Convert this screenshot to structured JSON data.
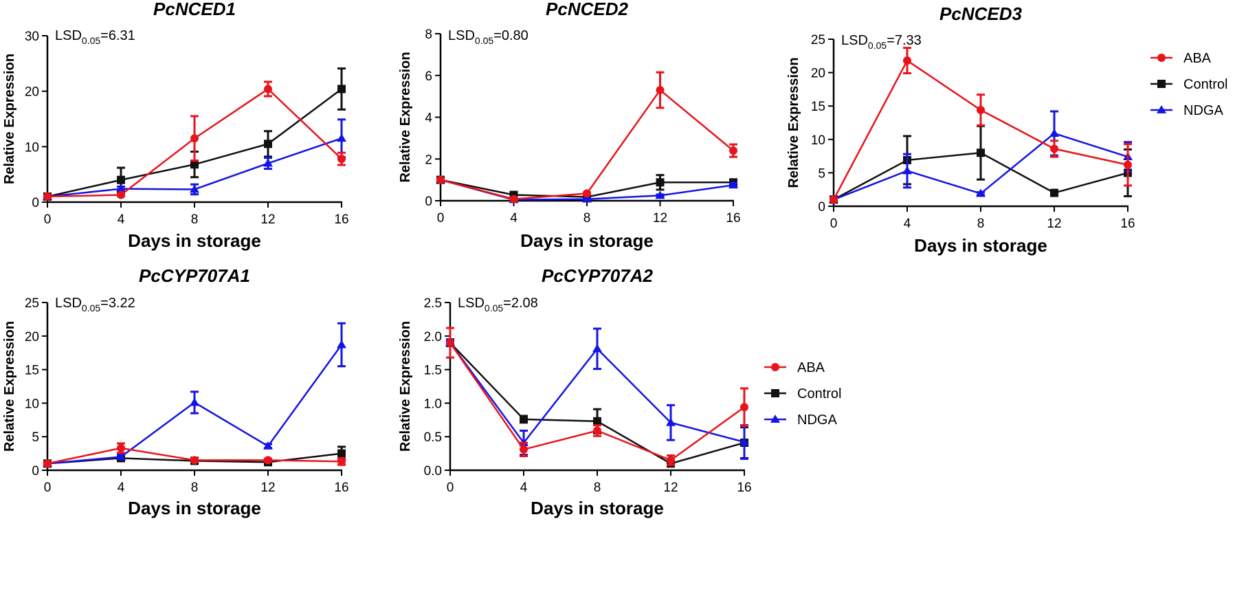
{
  "chart_data": [
    {
      "type": "line",
      "title": "PcNCED1",
      "xlabel": "Days in storage",
      "ylabel": "Relative Expression",
      "lsd": {
        "base": "LSD",
        "sub": "0.05",
        "value": "=6.31"
      },
      "x": [
        0,
        4,
        8,
        12,
        16
      ],
      "xticks": [
        "0",
        "4",
        "8",
        "12",
        "16"
      ],
      "ylim": [
        0,
        30
      ],
      "yticks": [
        0,
        10,
        20,
        30
      ],
      "ytick_labels": [
        "0",
        "10",
        "20",
        "30"
      ],
      "series": [
        {
          "name": "Control",
          "values": [
            1.0,
            4.0,
            6.8,
            10.5,
            20.4
          ],
          "errors": [
            0.2,
            2.2,
            2.3,
            2.3,
            3.7
          ]
        },
        {
          "name": "NDGA",
          "values": [
            1.0,
            2.4,
            2.3,
            7.0,
            11.5
          ],
          "errors": [
            0.2,
            0.4,
            0.9,
            1.0,
            3.4
          ]
        },
        {
          "name": "ABA",
          "values": [
            1.0,
            1.3,
            11.5,
            20.4,
            7.8
          ],
          "errors": [
            0.2,
            0.2,
            4.0,
            1.3,
            1.1
          ]
        }
      ]
    },
    {
      "type": "line",
      "title": "PcNCED2",
      "xlabel": "Days in storage",
      "ylabel": "Relative Expression",
      "lsd": {
        "base": "LSD",
        "sub": "0.05",
        "value": "=0.80"
      },
      "x": [
        0,
        4,
        8,
        12,
        16
      ],
      "xticks": [
        "0",
        "4",
        "8",
        "12",
        "16"
      ],
      "ylim": [
        0,
        8
      ],
      "yticks": [
        0,
        2,
        4,
        6,
        8
      ],
      "ytick_labels": [
        "0",
        "2",
        "4",
        "6",
        "8"
      ],
      "series": [
        {
          "name": "Control",
          "values": [
            1.0,
            0.28,
            0.18,
            0.88,
            0.88
          ],
          "errors": [
            0.05,
            0.05,
            0.05,
            0.35,
            0.1
          ]
        },
        {
          "name": "NDGA",
          "values": [
            1.0,
            0.05,
            0.08,
            0.25,
            0.75
          ],
          "errors": [
            0.05,
            0.03,
            0.03,
            0.05,
            0.1
          ]
        },
        {
          "name": "ABA",
          "values": [
            1.0,
            0.08,
            0.35,
            5.3,
            2.4
          ],
          "errors": [
            0.05,
            0.05,
            0.05,
            0.85,
            0.3
          ]
        }
      ]
    },
    {
      "type": "line",
      "title": "PcNCED3",
      "xlabel": "Days in storage",
      "ylabel": "Relative Expression",
      "lsd": {
        "base": "LSD",
        "sub": "0.05",
        "value": "=7.33"
      },
      "x": [
        0,
        4,
        8,
        12,
        16
      ],
      "xticks": [
        "0",
        "4",
        "8",
        "12",
        "16"
      ],
      "ylim": [
        0,
        25
      ],
      "yticks": [
        0,
        5,
        10,
        15,
        20,
        25
      ],
      "ytick_labels": [
        "0",
        "5",
        "10",
        "15",
        "20",
        "25"
      ],
      "legend": [
        "ABA",
        "Control",
        "NDGA"
      ],
      "series": [
        {
          "name": "Control",
          "values": [
            1.0,
            6.9,
            8.0,
            2.0,
            5.0
          ],
          "errors": [
            0.2,
            3.6,
            4.0,
            0.2,
            3.5
          ]
        },
        {
          "name": "NDGA",
          "values": [
            1.0,
            5.3,
            1.9,
            10.9,
            7.4
          ],
          "errors": [
            0.2,
            2.5,
            0.2,
            3.3,
            2.2
          ]
        },
        {
          "name": "ABA",
          "values": [
            1.0,
            21.8,
            14.4,
            8.6,
            6.2
          ],
          "errors": [
            0.2,
            1.9,
            2.3,
            1.2,
            3.1
          ]
        }
      ]
    },
    {
      "type": "line",
      "title": "PcCYP707A1",
      "xlabel": "Days in storage",
      "ylabel": "Relative Expression",
      "lsd": {
        "base": "LSD",
        "sub": "0.05",
        "value": "=3.22"
      },
      "x": [
        0,
        4,
        8,
        12,
        16
      ],
      "xticks": [
        "0",
        "4",
        "8",
        "12",
        "16"
      ],
      "ylim": [
        0,
        25
      ],
      "yticks": [
        0,
        5,
        10,
        15,
        20,
        25
      ],
      "ytick_labels": [
        "0",
        "5",
        "10",
        "15",
        "20",
        "25"
      ],
      "series": [
        {
          "name": "Control",
          "values": [
            1.0,
            1.8,
            1.4,
            1.2,
            2.5
          ],
          "errors": [
            0.2,
            0.3,
            0.3,
            0.2,
            1.0
          ]
        },
        {
          "name": "NDGA",
          "values": [
            1.0,
            2.0,
            10.1,
            3.6,
            18.7
          ],
          "errors": [
            0.2,
            0.3,
            1.6,
            0.3,
            3.2
          ]
        },
        {
          "name": "ABA",
          "values": [
            1.0,
            3.3,
            1.5,
            1.5,
            1.3
          ],
          "errors": [
            0.2,
            0.7,
            0.2,
            0.2,
            0.5
          ]
        }
      ]
    },
    {
      "type": "line",
      "title": "PcCYP707A2",
      "xlabel": "Days in storage",
      "ylabel": "Relative Expression",
      "lsd": {
        "base": "LSD",
        "sub": "0.05",
        "value": "=2.08"
      },
      "x": [
        0,
        4,
        8,
        12,
        16
      ],
      "xticks": [
        "0",
        "4",
        "8",
        "12",
        "16"
      ],
      "ylim": [
        0,
        2.5
      ],
      "yticks": [
        0,
        0.5,
        1.0,
        1.5,
        2.0,
        2.5
      ],
      "ytick_labels": [
        "0.0",
        "0.5",
        "1.0",
        "1.5",
        "2.0",
        "2.5"
      ],
      "legend": [
        "ABA",
        "Control",
        "NDGA"
      ],
      "series": [
        {
          "name": "Control",
          "values": [
            1.9,
            0.76,
            0.73,
            0.1,
            0.41
          ],
          "errors": [
            0.05,
            0.05,
            0.18,
            0.03,
            0.23
          ]
        },
        {
          "name": "NDGA",
          "values": [
            1.9,
            0.41,
            1.81,
            0.71,
            0.42
          ],
          "errors": [
            0.05,
            0.18,
            0.3,
            0.26,
            0.25
          ]
        },
        {
          "name": "ABA",
          "values": [
            1.9,
            0.31,
            0.59,
            0.15,
            0.94
          ],
          "errors": [
            0.22,
            0.1,
            0.08,
            0.07,
            0.28
          ]
        }
      ]
    }
  ],
  "series_colors": {
    "ABA": "#e8141b",
    "Control": "#111111",
    "NDGA": "#1414e6"
  },
  "series_markers": {
    "ABA": "circle",
    "Control": "square",
    "NDGA": "triangle"
  }
}
